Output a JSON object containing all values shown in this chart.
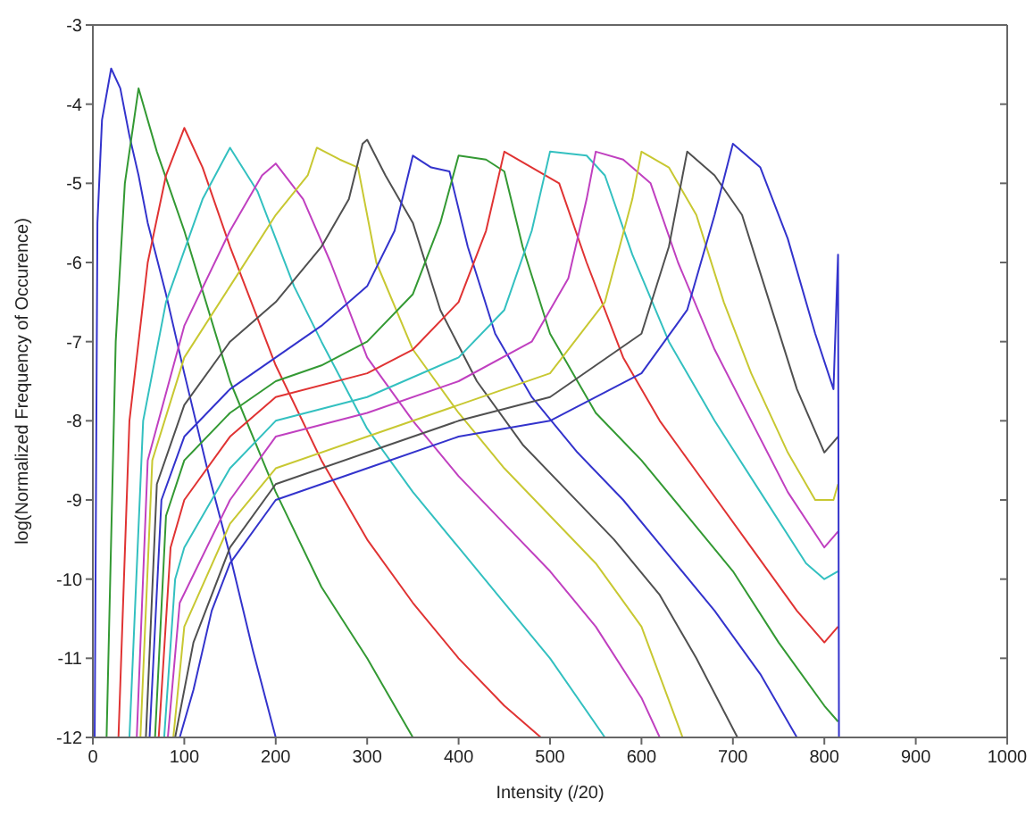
{
  "chart_data": {
    "type": "line",
    "xlabel": "Intensity (/20)",
    "ylabel": "log(Normalized Frequency of Occurence)",
    "xlim": [
      0,
      1000
    ],
    "ylim": [
      -12,
      -3
    ],
    "xticks": [
      0,
      100,
      200,
      300,
      400,
      500,
      600,
      700,
      800,
      900,
      1000
    ],
    "yticks": [
      -12,
      -11,
      -10,
      -9,
      -8,
      -7,
      -6,
      -5,
      -4,
      -3
    ],
    "marker": "none",
    "series": [
      {
        "color": "#3333cc",
        "x": [
          2,
          5,
          10,
          20,
          30,
          40,
          50,
          60,
          80,
          100,
          125,
          150,
          175,
          200
        ],
        "values": [
          -12,
          -5.5,
          -4.2,
          -3.55,
          -3.8,
          -4.4,
          -4.9,
          -5.5,
          -6.4,
          -7.4,
          -8.6,
          -9.7,
          -10.9,
          -12
        ]
      },
      {
        "color": "#339933",
        "x": [
          15,
          25,
          35,
          50,
          70,
          100,
          150,
          200,
          250,
          300,
          350
        ],
        "values": [
          -12,
          -7,
          -5,
          -3.8,
          -4.6,
          -5.6,
          -7.5,
          -8.9,
          -10.1,
          -11,
          -12
        ]
      },
      {
        "color": "#e03333",
        "x": [
          28,
          40,
          60,
          80,
          100,
          120,
          150,
          200,
          250,
          300,
          350,
          400,
          450,
          490
        ],
        "values": [
          -12,
          -8,
          -6,
          -4.9,
          -4.3,
          -4.8,
          -5.8,
          -7.3,
          -8.5,
          -9.5,
          -10.3,
          -11,
          -11.6,
          -12
        ]
      },
      {
        "color": "#33c0c0",
        "x": [
          40,
          55,
          80,
          120,
          150,
          180,
          220,
          250,
          300,
          350,
          400,
          450,
          500,
          560
        ],
        "values": [
          -12,
          -8,
          -6.5,
          -5.2,
          -4.55,
          -5.1,
          -6.3,
          -7,
          -8.1,
          -8.9,
          -9.6,
          -10.3,
          -11,
          -12
        ]
      },
      {
        "color": "#c040c0",
        "x": [
          48,
          60,
          100,
          150,
          185,
          200,
          230,
          260,
          300,
          350,
          400,
          450,
          500,
          550,
          600,
          620
        ],
        "values": [
          -12,
          -8.5,
          -6.8,
          -5.6,
          -4.9,
          -4.75,
          -5.2,
          -6,
          -7.2,
          -8,
          -8.7,
          -9.3,
          -9.9,
          -10.6,
          -11.5,
          -12
        ]
      },
      {
        "color": "#c8c832",
        "x": [
          52,
          65,
          100,
          150,
          200,
          235,
          245,
          270,
          290,
          310,
          350,
          400,
          450,
          500,
          550,
          600,
          645
        ],
        "values": [
          -12,
          -8.5,
          -7.2,
          -6.3,
          -5.4,
          -4.9,
          -4.55,
          -4.7,
          -4.8,
          -6,
          -7.1,
          -7.9,
          -8.6,
          -9.2,
          -9.8,
          -10.6,
          -12
        ]
      },
      {
        "color": "#505050",
        "x": [
          58,
          70,
          100,
          150,
          200,
          250,
          280,
          295,
          300,
          320,
          350,
          380,
          420,
          470,
          520,
          570,
          620,
          660,
          705
        ],
        "values": [
          -12,
          -8.8,
          -7.8,
          -7,
          -6.5,
          -5.8,
          -5.2,
          -4.5,
          -4.45,
          -4.9,
          -5.5,
          -6.6,
          -7.5,
          -8.3,
          -8.9,
          -9.5,
          -10.2,
          -11,
          -12
        ]
      },
      {
        "color": "#3333cc",
        "x": [
          62,
          75,
          100,
          150,
          200,
          250,
          300,
          330,
          350,
          370,
          390,
          410,
          440,
          480,
          530,
          580,
          630,
          680,
          730,
          770
        ],
        "values": [
          -12,
          -9,
          -8.2,
          -7.6,
          -7.2,
          -6.8,
          -6.3,
          -5.6,
          -4.65,
          -4.8,
          -4.85,
          -5.8,
          -6.9,
          -7.7,
          -8.4,
          -9,
          -9.7,
          -10.4,
          -11.2,
          -12
        ]
      },
      {
        "color": "#339933",
        "x": [
          68,
          80,
          100,
          150,
          200,
          250,
          300,
          350,
          380,
          400,
          430,
          450,
          470,
          500,
          550,
          600,
          650,
          700,
          750,
          800,
          815
        ],
        "values": [
          -12,
          -9.2,
          -8.5,
          -7.9,
          -7.5,
          -7.3,
          -7,
          -6.4,
          -5.5,
          -4.65,
          -4.7,
          -4.85,
          -5.8,
          -6.9,
          -7.9,
          -8.5,
          -9.2,
          -9.9,
          -10.8,
          -11.6,
          -11.8
        ]
      },
      {
        "color": "#e03333",
        "x": [
          72,
          85,
          100,
          150,
          200,
          300,
          350,
          400,
          430,
          450,
          480,
          510,
          540,
          580,
          620,
          670,
          720,
          770,
          800,
          815
        ],
        "values": [
          -12,
          -9.6,
          -9,
          -8.2,
          -7.7,
          -7.4,
          -7.1,
          -6.5,
          -5.6,
          -4.6,
          -4.8,
          -5,
          -6,
          -7.2,
          -8,
          -8.8,
          -9.6,
          -10.4,
          -10.8,
          -10.6
        ]
      },
      {
        "color": "#33c0c0",
        "x": [
          78,
          90,
          100,
          150,
          200,
          300,
          400,
          450,
          480,
          500,
          540,
          560,
          590,
          630,
          680,
          730,
          780,
          800,
          815
        ],
        "values": [
          -12,
          -10,
          -9.6,
          -8.6,
          -8,
          -7.7,
          -7.2,
          -6.6,
          -5.6,
          -4.6,
          -4.65,
          -4.9,
          -5.9,
          -7,
          -8,
          -8.9,
          -9.8,
          -10,
          -9.9
        ]
      },
      {
        "color": "#c040c0",
        "x": [
          82,
          95,
          150,
          200,
          300,
          400,
          480,
          520,
          540,
          550,
          580,
          610,
          640,
          680,
          720,
          760,
          800,
          815
        ],
        "values": [
          -12,
          -10.3,
          -9,
          -8.2,
          -7.9,
          -7.5,
          -7,
          -6.2,
          -5.2,
          -4.6,
          -4.7,
          -5,
          -6,
          -7.1,
          -8,
          -8.9,
          -9.6,
          -9.4
        ]
      },
      {
        "color": "#c8c832",
        "x": [
          88,
          100,
          150,
          200,
          300,
          400,
          500,
          560,
          590,
          600,
          630,
          660,
          690,
          720,
          760,
          790,
          810,
          815
        ],
        "values": [
          -12,
          -10.6,
          -9.3,
          -8.6,
          -8.2,
          -7.8,
          -7.4,
          -6.5,
          -5.2,
          -4.6,
          -4.8,
          -5.4,
          -6.5,
          -7.4,
          -8.4,
          -9,
          -9,
          -8.8
        ]
      },
      {
        "color": "#505050",
        "x": [
          90,
          110,
          150,
          200,
          300,
          400,
          500,
          600,
          630,
          650,
          680,
          710,
          740,
          770,
          800,
          815
        ],
        "values": [
          -12,
          -10.8,
          -9.6,
          -8.8,
          -8.4,
          -8,
          -7.7,
          -6.9,
          -5.8,
          -4.6,
          -4.9,
          -5.4,
          -6.5,
          -7.6,
          -8.4,
          -8.2
        ]
      },
      {
        "color": "#3333cc",
        "x": [
          95,
          110,
          130,
          150,
          200,
          300,
          400,
          500,
          600,
          650,
          680,
          700,
          730,
          760,
          790,
          810,
          815,
          816
        ],
        "values": [
          -12,
          -11.4,
          -10.4,
          -9.8,
          -9,
          -8.6,
          -8.2,
          -8,
          -7.4,
          -6.6,
          -5.4,
          -4.5,
          -4.8,
          -5.7,
          -6.9,
          -7.6,
          -5.9,
          -12
        ]
      }
    ]
  }
}
